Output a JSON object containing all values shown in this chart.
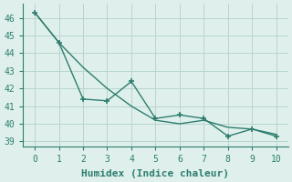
{
  "xlabel": "Humidex (Indice chaleur)",
  "x": [
    0,
    1,
    2,
    3,
    4,
    5,
    6,
    7,
    8,
    9,
    10
  ],
  "line_smooth": [
    46.3,
    44.6,
    43.2,
    42.0,
    41.0,
    40.2,
    40.0,
    40.2,
    39.8,
    39.7,
    39.4
  ],
  "line_jagged": [
    46.3,
    44.6,
    41.4,
    41.3,
    42.4,
    40.3,
    40.5,
    40.3,
    39.3,
    39.7,
    39.3
  ],
  "line_color": "#2d7d6e",
  "bg_color": "#dff0ec",
  "grid_color": "#b8d4ce",
  "ylim": [
    38.7,
    46.8
  ],
  "yticks": [
    39,
    40,
    41,
    42,
    43,
    44,
    45,
    46
  ],
  "xticks": [
    0,
    1,
    2,
    3,
    4,
    5,
    6,
    7,
    8,
    9,
    10
  ],
  "marker": "+",
  "markersize": 4,
  "linewidth": 1.0,
  "xlabel_fontsize": 8,
  "tick_fontsize": 7
}
